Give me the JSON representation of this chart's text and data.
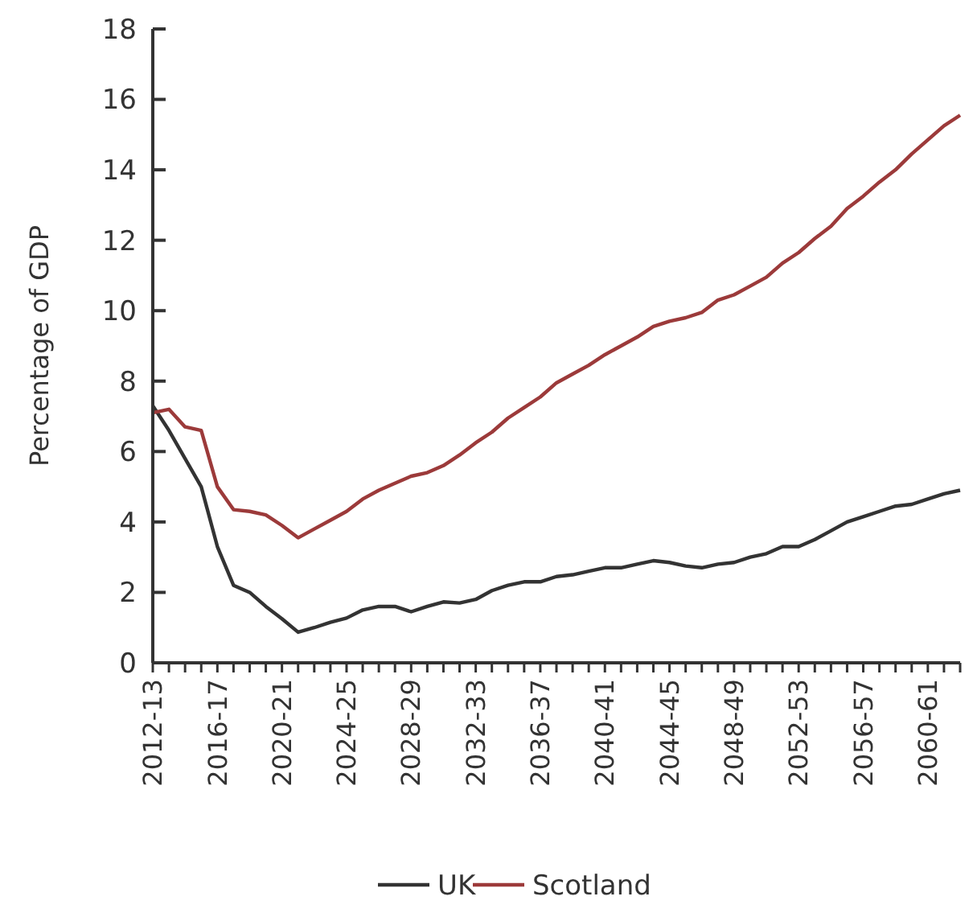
{
  "chart_data": {
    "type": "line",
    "ylabel": "Percentage of GDP",
    "categories": [
      "2012-13",
      null,
      null,
      null,
      "2016-17",
      null,
      null,
      null,
      "2020-21",
      null,
      null,
      null,
      "2024-25",
      null,
      null,
      null,
      "2028-29",
      null,
      null,
      null,
      "2032-33",
      null,
      null,
      null,
      "2036-37",
      null,
      null,
      null,
      "2040-41",
      null,
      null,
      null,
      "2044-45",
      null,
      null,
      null,
      "2048-49",
      null,
      null,
      null,
      "2052-53",
      null,
      null,
      null,
      "2056-57",
      null,
      null,
      null,
      "2060-61",
      null,
      null
    ],
    "series": [
      {
        "name": "UK",
        "color": "#333333",
        "values": [
          7.3,
          6.6,
          5.8,
          5.0,
          3.3,
          2.2,
          2.0,
          1.6,
          1.25,
          0.87,
          1.0,
          1.15,
          1.27,
          1.5,
          1.6,
          1.6,
          1.45,
          1.6,
          1.73,
          1.7,
          1.8,
          2.05,
          2.2,
          2.3,
          2.3,
          2.45,
          2.5,
          2.6,
          2.7,
          2.7,
          2.8,
          2.9,
          2.85,
          2.75,
          2.7,
          2.8,
          2.85,
          3.0,
          3.1,
          3.3,
          3.3,
          3.5,
          3.75,
          4.0,
          4.15,
          4.3,
          4.45,
          4.5,
          4.65,
          4.8,
          4.9
        ]
      },
      {
        "name": "Scotland",
        "color": "#9c3a3a",
        "values": [
          7.1,
          7.2,
          6.7,
          6.6,
          5.0,
          4.35,
          4.3,
          4.2,
          3.9,
          3.55,
          3.8,
          4.05,
          4.3,
          4.65,
          4.9,
          5.1,
          5.3,
          5.4,
          5.6,
          5.9,
          6.25,
          6.55,
          6.95,
          7.25,
          7.55,
          7.95,
          8.2,
          8.45,
          8.75,
          9.0,
          9.25,
          9.55,
          9.7,
          9.8,
          9.95,
          10.3,
          10.45,
          10.7,
          10.95,
          11.35,
          11.65,
          12.05,
          12.4,
          12.9,
          13.25,
          13.65,
          14.0,
          14.45,
          14.85,
          15.25,
          15.55
        ]
      }
    ],
    "ylim": [
      0,
      18
    ],
    "yticks": [
      0,
      2,
      4,
      6,
      8,
      10,
      12,
      14,
      16,
      18
    ],
    "grid": false,
    "legend": "bottom",
    "marker": "none",
    "line_style": "solid"
  }
}
